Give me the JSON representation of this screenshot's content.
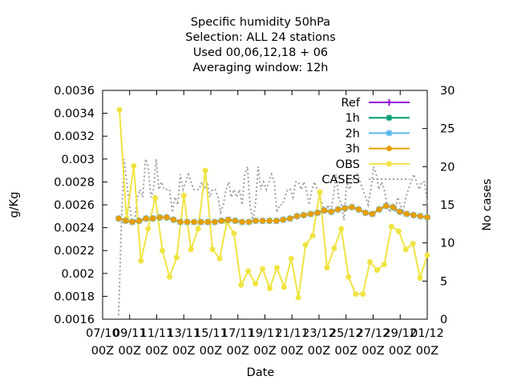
{
  "chart_data": {
    "type": "line",
    "title_lines": [
      "Specific humidity 50hPa",
      "Selection: ALL      24 stations",
      "Used  00,06,12,18 + 06",
      "Averaging window: 12h"
    ],
    "xlabel": "Date",
    "ylabel": "g/Kg",
    "y2label": "No cases",
    "ylim": [
      0.0016,
      0.0036
    ],
    "y2lim": [
      0,
      30
    ],
    "yticks": [
      "0.0016",
      "0.0018",
      "0.002",
      "0.0022",
      "0.0024",
      "0.0026",
      "0.0028",
      "0.003",
      "0.0032",
      "0.0034",
      "0.0036"
    ],
    "y2ticks": [
      "0",
      "5",
      "10",
      "15",
      "20",
      "25",
      "30"
    ],
    "xticks": [
      {
        "top": "07/10",
        "bottom": "00Z"
      },
      {
        "top": "09/11",
        "bottom": "00Z"
      },
      {
        "top": "11/11",
        "bottom": "00Z"
      },
      {
        "top": "13/11",
        "bottom": "00Z"
      },
      {
        "top": "15/11",
        "bottom": "00Z"
      },
      {
        "top": "17/11",
        "bottom": "00Z"
      },
      {
        "top": "19/11",
        "bottom": "00Z"
      },
      {
        "top": "21/11",
        "bottom": "00Z"
      },
      {
        "top": "23/12",
        "bottom": "00Z"
      },
      {
        "top": "25/12",
        "bottom": "00Z"
      },
      {
        "top": "27/12",
        "bottom": "00Z"
      },
      {
        "top": "29/12",
        "bottom": "00Z"
      },
      {
        "top": "01/12",
        "bottom": "00Z"
      }
    ],
    "legend_position": "top-right",
    "series": [
      {
        "name": "Ref",
        "color": "#9400d3",
        "marker": "plus",
        "values": [
          0.00248,
          0.00246,
          0.00245,
          0.00246,
          0.00248,
          0.00248,
          0.00249,
          0.00249,
          0.00247,
          0.00245,
          0.00245,
          0.00245,
          0.00245,
          0.00245,
          0.00245,
          0.00246,
          0.00247,
          0.00246,
          0.00245,
          0.00245,
          0.00246,
          0.00246,
          0.00246,
          0.00246,
          0.00247,
          0.00248,
          0.0025,
          0.00251,
          0.00252,
          0.00253,
          0.00255,
          0.00254,
          0.00256,
          0.00257,
          0.00258,
          0.00256,
          0.00253,
          0.00252,
          0.00256,
          0.00259,
          0.00258,
          0.00254,
          0.00252,
          0.00251,
          0.0025,
          0.00249
        ]
      },
      {
        "name": "1h",
        "color": "#009e73",
        "marker": "star",
        "values": [
          0.00248,
          0.00246,
          0.00245,
          0.00246,
          0.00248,
          0.00248,
          0.00249,
          0.00249,
          0.00247,
          0.00245,
          0.00245,
          0.00245,
          0.00245,
          0.00245,
          0.00245,
          0.00246,
          0.00247,
          0.00246,
          0.00245,
          0.00245,
          0.00246,
          0.00246,
          0.00246,
          0.00246,
          0.00247,
          0.00248,
          0.0025,
          0.00251,
          0.00252,
          0.00253,
          0.00255,
          0.00254,
          0.00256,
          0.00257,
          0.00258,
          0.00256,
          0.00253,
          0.00252,
          0.00256,
          0.00259,
          0.00258,
          0.00254,
          0.00252,
          0.00251,
          0.0025,
          0.00249
        ]
      },
      {
        "name": "2h",
        "color": "#56b4e9",
        "marker": "star",
        "values": [
          0.00248,
          0.00246,
          0.00245,
          0.00246,
          0.00248,
          0.00248,
          0.00249,
          0.00249,
          0.00247,
          0.00245,
          0.00245,
          0.00245,
          0.00245,
          0.00245,
          0.00245,
          0.00246,
          0.00247,
          0.00246,
          0.00245,
          0.00245,
          0.00246,
          0.00246,
          0.00246,
          0.00246,
          0.00247,
          0.00248,
          0.0025,
          0.00251,
          0.00252,
          0.00253,
          0.00255,
          0.00254,
          0.00256,
          0.00257,
          0.00258,
          0.00256,
          0.00253,
          0.00252,
          0.00256,
          0.00259,
          0.00258,
          0.00254,
          0.00252,
          0.00251,
          0.0025,
          0.00249
        ]
      },
      {
        "name": "3h",
        "color": "#e69f00",
        "marker": "circle",
        "values": [
          0.00248,
          0.00246,
          0.00245,
          0.00246,
          0.00248,
          0.00248,
          0.00249,
          0.00249,
          0.00247,
          0.00245,
          0.00245,
          0.00245,
          0.00245,
          0.00245,
          0.00245,
          0.00246,
          0.00247,
          0.00246,
          0.00245,
          0.00245,
          0.00246,
          0.00246,
          0.00246,
          0.00246,
          0.00247,
          0.00248,
          0.0025,
          0.00251,
          0.00252,
          0.00253,
          0.00255,
          0.00254,
          0.00256,
          0.00257,
          0.00258,
          0.00256,
          0.00253,
          0.00252,
          0.00256,
          0.00259,
          0.00258,
          0.00254,
          0.00252,
          0.00251,
          0.0025,
          0.00249
        ]
      },
      {
        "name": "OBS",
        "color": "#f0e442",
        "marker": "circle",
        "values": [
          0.00343,
          0.00248,
          0.00294,
          0.00211,
          0.00239,
          0.00266,
          0.0022,
          0.00197,
          0.00214,
          0.00268,
          0.00221,
          0.00239,
          0.0029,
          0.00221,
          0.00213,
          0.00245,
          0.00235,
          0.0019,
          0.00202,
          0.00191,
          0.00204,
          0.00187,
          0.00205,
          0.00188,
          0.00213,
          0.00179,
          0.00225,
          0.00233,
          0.00271,
          0.00205,
          0.00222,
          0.00239,
          0.00197,
          0.00182,
          0.00182,
          0.0021,
          0.00203,
          0.00208,
          0.00241,
          0.00237,
          0.00221,
          0.00226,
          0.00196,
          0.00216
        ]
      }
    ],
    "cases": {
      "name": "CASES",
      "color": "#a0a0a0",
      "dash": "dotted",
      "axis": "y2",
      "values": [
        0.5,
        12,
        21,
        18,
        15,
        13,
        13,
        16,
        17,
        16,
        21,
        20,
        16,
        17,
        21,
        17,
        18,
        17,
        17,
        17,
        14,
        16,
        15,
        19,
        17,
        18,
        19,
        18,
        17,
        17,
        17,
        18,
        17,
        18,
        16,
        17,
        17,
        16,
        14,
        15,
        17,
        18,
        16,
        17,
        16,
        17,
        15,
        19,
        20,
        15,
        13,
        15,
        20,
        17,
        18,
        17,
        18,
        19,
        18,
        14,
        15,
        15,
        16,
        17,
        17,
        16,
        18,
        18,
        17,
        18,
        17,
        15,
        17,
        18,
        17,
        16,
        15,
        14,
        15,
        14,
        16,
        19,
        16,
        15,
        13,
        18,
        17,
        18,
        19,
        19,
        18,
        17,
        16,
        15,
        17,
        20,
        19,
        17,
        18,
        17,
        15,
        14,
        15,
        14,
        16,
        15,
        14,
        16,
        17,
        18,
        19,
        18,
        17,
        18,
        18,
        15
      ]
    }
  }
}
